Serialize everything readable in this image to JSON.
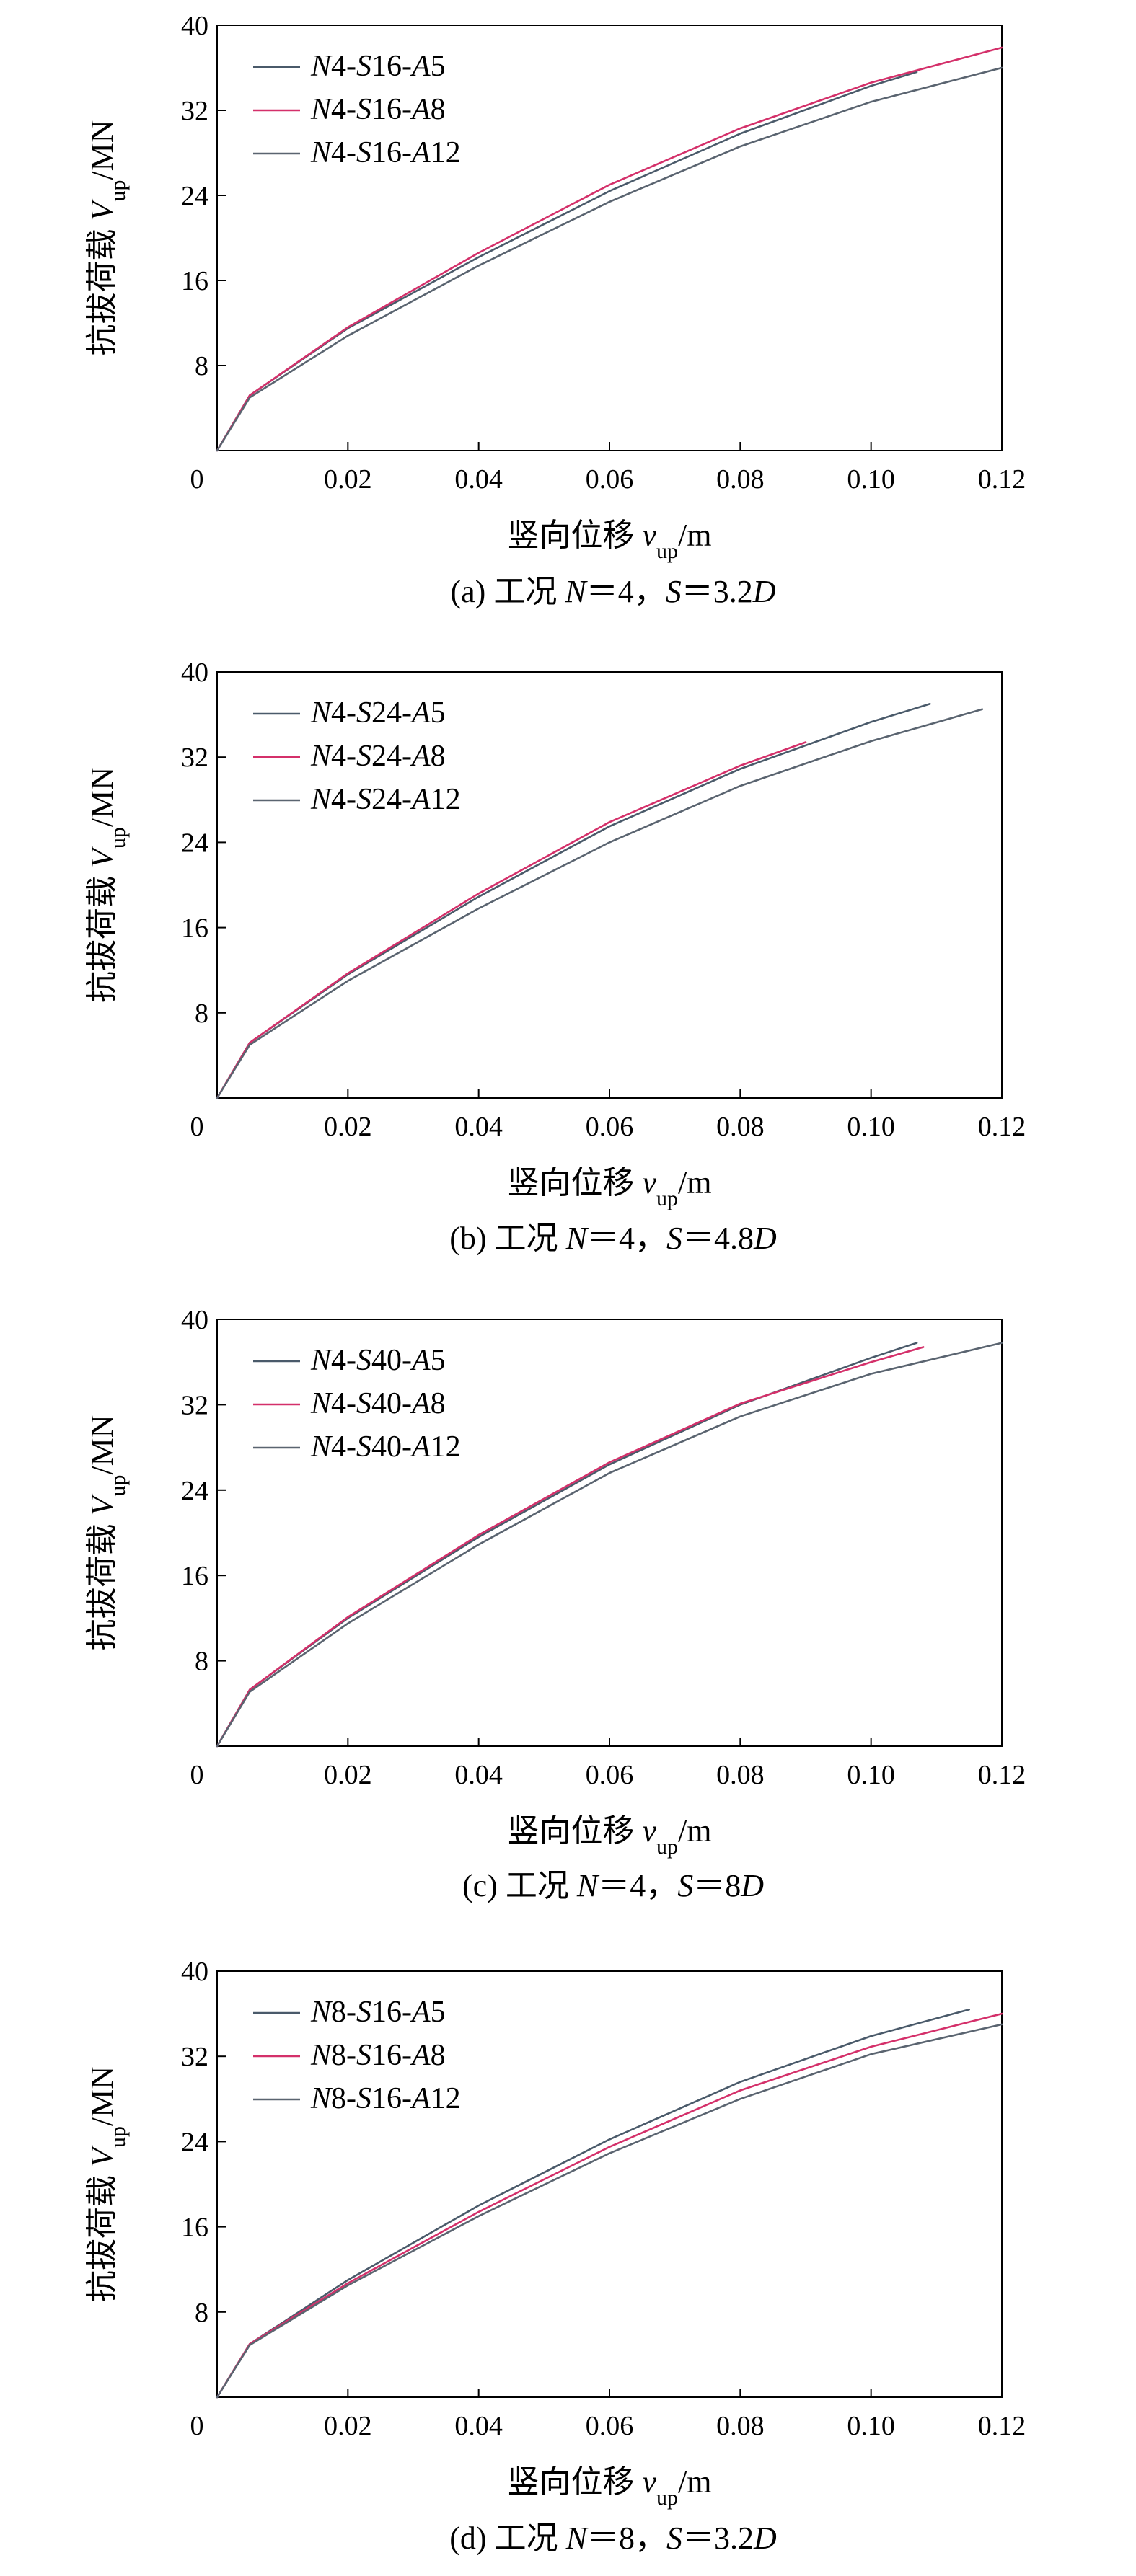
{
  "colors": {
    "series_a5": "#4a5a6a",
    "series_a8": "#d4306a",
    "series_a12": "#5a6470"
  },
  "chart_data": [
    {
      "type": "line",
      "caption": "(a) 工况 N=4，S=3.2D",
      "xlabel": "竖向位移 v_up/m",
      "ylabel": "抗拔荷载 V_up/MN",
      "xlim": [
        0,
        0.12
      ],
      "ylim": [
        0,
        40
      ],
      "x_ticks": [
        "0",
        "0.02",
        "0.04",
        "0.06",
        "0.08",
        "0.10",
        "0.12"
      ],
      "y_ticks": [
        "8",
        "16",
        "24",
        "32",
        "40"
      ],
      "legend_position": "top-left",
      "series": [
        {
          "name": "N4-S16-A5",
          "color": "#4a5a6a",
          "x": [
            0,
            0.005,
            0.02,
            0.04,
            0.06,
            0.08,
            0.1,
            0.107
          ],
          "y": [
            0,
            5.2,
            11.5,
            18.2,
            24.4,
            29.8,
            34.3,
            35.6
          ]
        },
        {
          "name": "N4-S16-A8",
          "color": "#d4306a",
          "x": [
            0,
            0.005,
            0.02,
            0.04,
            0.06,
            0.08,
            0.1,
            0.12
          ],
          "y": [
            0,
            5.2,
            11.6,
            18.6,
            25.0,
            30.3,
            34.6,
            37.9
          ]
        },
        {
          "name": "N4-S16-A12",
          "color": "#5a6470",
          "x": [
            0,
            0.005,
            0.02,
            0.04,
            0.06,
            0.08,
            0.1,
            0.12
          ],
          "y": [
            0,
            5.0,
            10.8,
            17.4,
            23.4,
            28.6,
            32.8,
            36.0
          ]
        }
      ]
    },
    {
      "type": "line",
      "caption": "(b) 工况 N=4，S=4.8D",
      "xlabel": "竖向位移 v_up/m",
      "ylabel": "抗拔荷载 V_up/MN",
      "xlim": [
        0,
        0.12
      ],
      "ylim": [
        0,
        40
      ],
      "x_ticks": [
        "0",
        "0.02",
        "0.04",
        "0.06",
        "0.08",
        "0.10",
        "0.12"
      ],
      "y_ticks": [
        "8",
        "16",
        "24",
        "32",
        "40"
      ],
      "legend_position": "top-left",
      "series": [
        {
          "name": "N4-S24-A5",
          "color": "#4a5a6a",
          "x": [
            0,
            0.005,
            0.02,
            0.04,
            0.06,
            0.08,
            0.1,
            0.109
          ],
          "y": [
            0,
            5.2,
            11.6,
            18.9,
            25.5,
            30.9,
            35.3,
            37.0
          ]
        },
        {
          "name": "N4-S24-A8",
          "color": "#d4306a",
          "x": [
            0,
            0.005,
            0.02,
            0.04,
            0.06,
            0.08,
            0.09
          ],
          "y": [
            0,
            5.2,
            11.7,
            19.2,
            25.9,
            31.2,
            33.4
          ]
        },
        {
          "name": "N4-S24-A12",
          "color": "#5a6470",
          "x": [
            0,
            0.005,
            0.02,
            0.04,
            0.06,
            0.08,
            0.1,
            0.117
          ],
          "y": [
            0,
            5.0,
            11.0,
            17.8,
            24.0,
            29.3,
            33.5,
            36.5
          ]
        }
      ]
    },
    {
      "type": "line",
      "caption": "(c) 工况 N=4，S=8D",
      "xlabel": "竖向位移 v_up/m",
      "ylabel": "抗拔荷载 V_up/MN",
      "xlim": [
        0,
        0.12
      ],
      "ylim": [
        0,
        40
      ],
      "x_ticks": [
        "0",
        "0.02",
        "0.04",
        "0.06",
        "0.08",
        "0.10",
        "0.12"
      ],
      "y_ticks": [
        "8",
        "16",
        "24",
        "32",
        "40"
      ],
      "legend_position": "top-left",
      "series": [
        {
          "name": "N4-S40-A5",
          "color": "#4a5a6a",
          "x": [
            0,
            0.005,
            0.02,
            0.04,
            0.06,
            0.08,
            0.1,
            0.107
          ],
          "y": [
            0,
            5.3,
            12.0,
            19.6,
            26.4,
            32.0,
            36.4,
            37.8
          ]
        },
        {
          "name": "N4-S40-A8",
          "color": "#d4306a",
          "x": [
            0,
            0.005,
            0.02,
            0.04,
            0.06,
            0.08,
            0.1,
            0.108
          ],
          "y": [
            0,
            5.3,
            12.1,
            19.8,
            26.6,
            32.1,
            36.0,
            37.4
          ]
        },
        {
          "name": "N4-S40-A12",
          "color": "#5a6470",
          "x": [
            0,
            0.005,
            0.02,
            0.04,
            0.06,
            0.08,
            0.1,
            0.12
          ],
          "y": [
            0,
            5.1,
            11.5,
            18.9,
            25.6,
            30.9,
            34.9,
            37.8
          ]
        }
      ]
    },
    {
      "type": "line",
      "caption": "(d) 工况 N=8，S=3.2D",
      "xlabel": "竖向位移 v_up/m",
      "ylabel": "抗拔荷载 V_up/MN",
      "xlim": [
        0,
        0.12
      ],
      "ylim": [
        0,
        40
      ],
      "x_ticks": [
        "0",
        "0.02",
        "0.04",
        "0.06",
        "0.08",
        "0.10",
        "0.12"
      ],
      "y_ticks": [
        "8",
        "16",
        "24",
        "32",
        "40"
      ],
      "legend_position": "top-left",
      "series": [
        {
          "name": "N8-S16-A5",
          "color": "#4a5a6a",
          "x": [
            0,
            0.005,
            0.02,
            0.04,
            0.06,
            0.08,
            0.1,
            0.115
          ],
          "y": [
            0,
            5.0,
            11.0,
            18.0,
            24.2,
            29.6,
            33.9,
            36.4
          ]
        },
        {
          "name": "N8-S16-A8",
          "color": "#d4306a",
          "x": [
            0,
            0.005,
            0.02,
            0.04,
            0.06,
            0.08,
            0.1,
            0.12
          ],
          "y": [
            0,
            5.0,
            10.7,
            17.4,
            23.5,
            28.8,
            32.9,
            36.0
          ]
        },
        {
          "name": "N8-S16-A12",
          "color": "#5a6470",
          "x": [
            0,
            0.005,
            0.02,
            0.04,
            0.06,
            0.08,
            0.1,
            0.12
          ],
          "y": [
            0,
            4.9,
            10.5,
            17.0,
            22.9,
            28.0,
            32.2,
            35.0
          ]
        }
      ]
    }
  ]
}
